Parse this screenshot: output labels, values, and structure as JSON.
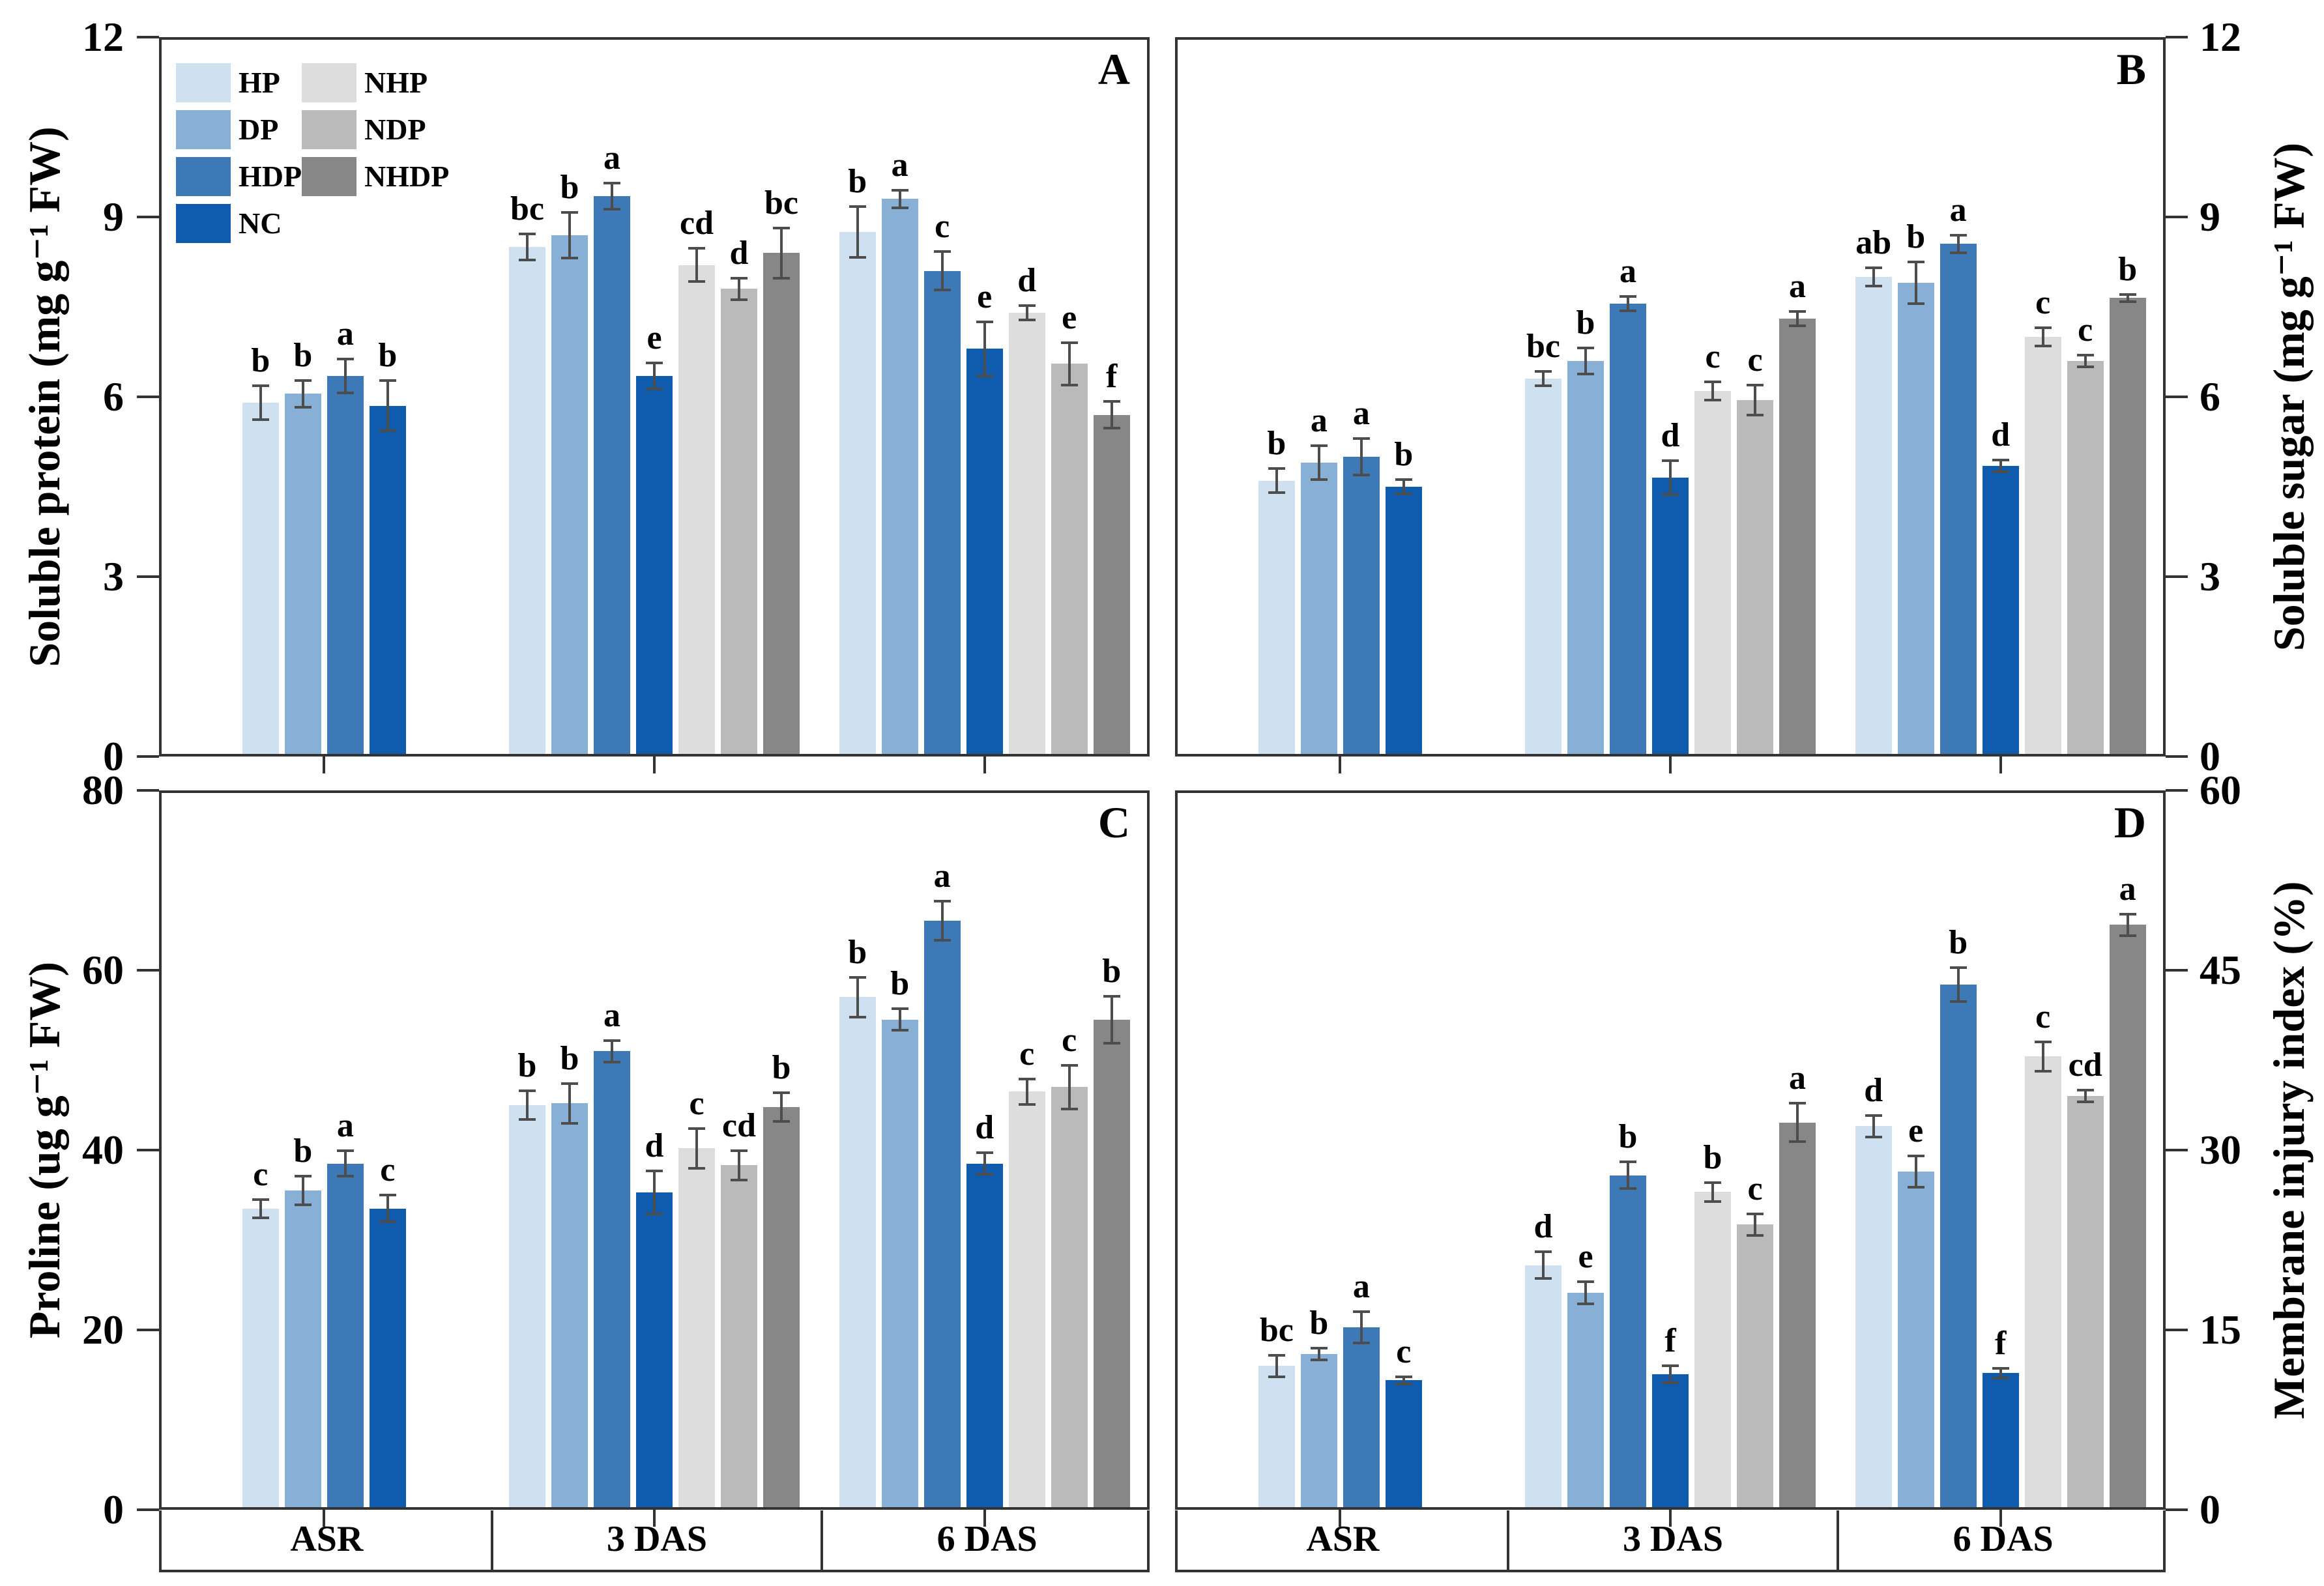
{
  "style": {
    "axis_color": "#333333",
    "error_bar_color": "#4d4d4d",
    "background": "#ffffff",
    "text_color": "#000000"
  },
  "legend": {
    "items": [
      {
        "label": "HP",
        "color": "#cfe0f1"
      },
      {
        "label": "DP",
        "color": "#88b0d7"
      },
      {
        "label": "HDP",
        "color": "#3d79b6"
      },
      {
        "label": "NC",
        "color": "#0f5bad"
      },
      {
        "label": "NHP",
        "color": "#dddddd"
      },
      {
        "label": "NDP",
        "color": "#bababa"
      },
      {
        "label": "NHDP",
        "color": "#878787"
      }
    ]
  },
  "chart_data": [
    {
      "type": "bar",
      "panel_label": "A",
      "ylabel": "Soluble protein (mg g⁻¹ FW)",
      "axis_side": "left",
      "ylim": [
        0,
        12
      ],
      "yticks": [
        0,
        3,
        6,
        9,
        12
      ],
      "categories": [
        "ASR",
        "3 DAS",
        "6 DAS"
      ],
      "grid": false,
      "groups": [
        {
          "category": "ASR",
          "bars": [
            {
              "treatment": "HP",
              "value": 5.9,
              "error": 0.28,
              "letter": "b"
            },
            {
              "treatment": "DP",
              "value": 6.05,
              "error": 0.22,
              "letter": "b"
            },
            {
              "treatment": "HDP",
              "value": 6.35,
              "error": 0.28,
              "letter": "a"
            },
            {
              "treatment": "NC",
              "value": 5.85,
              "error": 0.42,
              "letter": "b"
            }
          ]
        },
        {
          "category": "3 DAS",
          "bars": [
            {
              "treatment": "HP",
              "value": 8.5,
              "error": 0.22,
              "letter": "bc"
            },
            {
              "treatment": "DP",
              "value": 8.7,
              "error": 0.38,
              "letter": "b"
            },
            {
              "treatment": "HDP",
              "value": 9.35,
              "error": 0.22,
              "letter": "a"
            },
            {
              "treatment": "NC",
              "value": 6.35,
              "error": 0.22,
              "letter": "e"
            },
            {
              "treatment": "NHP",
              "value": 8.2,
              "error": 0.28,
              "letter": "cd"
            },
            {
              "treatment": "NDP",
              "value": 7.8,
              "error": 0.18,
              "letter": "d"
            },
            {
              "treatment": "NHDP",
              "value": 8.4,
              "error": 0.42,
              "letter": "bc"
            }
          ]
        },
        {
          "category": "6 DAS",
          "bars": [
            {
              "treatment": "HP",
              "value": 8.75,
              "error": 0.42,
              "letter": "b"
            },
            {
              "treatment": "DP",
              "value": 9.3,
              "error": 0.15,
              "letter": "a"
            },
            {
              "treatment": "HDP",
              "value": 8.1,
              "error": 0.32,
              "letter": "c"
            },
            {
              "treatment": "NC",
              "value": 6.8,
              "error": 0.45,
              "letter": "e"
            },
            {
              "treatment": "NHP",
              "value": 7.4,
              "error": 0.12,
              "letter": "d"
            },
            {
              "treatment": "NDP",
              "value": 6.55,
              "error": 0.35,
              "letter": "e"
            },
            {
              "treatment": "NHDP",
              "value": 5.7,
              "error": 0.22,
              "letter": "f"
            }
          ]
        }
      ]
    },
    {
      "type": "bar",
      "panel_label": "B",
      "ylabel": "Soluble sugar (mg g⁻¹ FW)",
      "axis_side": "right",
      "ylim": [
        0,
        12
      ],
      "yticks": [
        0,
        3,
        6,
        9,
        12
      ],
      "categories": [
        "ASR",
        "3 DAS",
        "6 DAS"
      ],
      "grid": false,
      "groups": [
        {
          "category": "ASR",
          "bars": [
            {
              "treatment": "HP",
              "value": 4.6,
              "error": 0.2,
              "letter": "b"
            },
            {
              "treatment": "DP",
              "value": 4.9,
              "error": 0.28,
              "letter": "a"
            },
            {
              "treatment": "HDP",
              "value": 5.0,
              "error": 0.3,
              "letter": "a"
            },
            {
              "treatment": "NC",
              "value": 4.5,
              "error": 0.12,
              "letter": "b"
            }
          ]
        },
        {
          "category": "3 DAS",
          "bars": [
            {
              "treatment": "HP",
              "value": 6.3,
              "error": 0.12,
              "letter": "bc"
            },
            {
              "treatment": "DP",
              "value": 6.6,
              "error": 0.22,
              "letter": "b"
            },
            {
              "treatment": "HDP",
              "value": 7.55,
              "error": 0.12,
              "letter": "a"
            },
            {
              "treatment": "NC",
              "value": 4.65,
              "error": 0.28,
              "letter": "d"
            },
            {
              "treatment": "NHP",
              "value": 6.1,
              "error": 0.15,
              "letter": "c"
            },
            {
              "treatment": "NDP",
              "value": 5.95,
              "error": 0.25,
              "letter": "c"
            },
            {
              "treatment": "NHDP",
              "value": 7.3,
              "error": 0.12,
              "letter": "a"
            }
          ]
        },
        {
          "category": "6 DAS",
          "bars": [
            {
              "treatment": "HP",
              "value": 8.0,
              "error": 0.15,
              "letter": "ab"
            },
            {
              "treatment": "DP",
              "value": 7.9,
              "error": 0.35,
              "letter": "b"
            },
            {
              "treatment": "HDP",
              "value": 8.55,
              "error": 0.15,
              "letter": "a"
            },
            {
              "treatment": "NC",
              "value": 4.85,
              "error": 0.1,
              "letter": "d"
            },
            {
              "treatment": "NHP",
              "value": 7.0,
              "error": 0.15,
              "letter": "c"
            },
            {
              "treatment": "NDP",
              "value": 6.6,
              "error": 0.1,
              "letter": "c"
            },
            {
              "treatment": "NHDP",
              "value": 7.65,
              "error": 0.06,
              "letter": "b"
            }
          ]
        }
      ]
    },
    {
      "type": "bar",
      "panel_label": "C",
      "ylabel": "Proline (ug g⁻¹ FW)",
      "axis_side": "left",
      "ylim": [
        0,
        80
      ],
      "yticks": [
        0,
        20,
        40,
        60,
        80
      ],
      "categories": [
        "ASR",
        "3 DAS",
        "6 DAS"
      ],
      "grid": false,
      "groups": [
        {
          "category": "ASR",
          "bars": [
            {
              "treatment": "HP",
              "value": 33.5,
              "error": 1.0,
              "letter": "c"
            },
            {
              "treatment": "DP",
              "value": 35.5,
              "error": 1.6,
              "letter": "b"
            },
            {
              "treatment": "HDP",
              "value": 38.5,
              "error": 1.4,
              "letter": "a"
            },
            {
              "treatment": "NC",
              "value": 33.5,
              "error": 1.5,
              "letter": "c"
            }
          ]
        },
        {
          "category": "3 DAS",
          "bars": [
            {
              "treatment": "HP",
              "value": 45.0,
              "error": 1.6,
              "letter": "b"
            },
            {
              "treatment": "DP",
              "value": 45.2,
              "error": 2.2,
              "letter": "b"
            },
            {
              "treatment": "HDP",
              "value": 51.0,
              "error": 1.2,
              "letter": "a"
            },
            {
              "treatment": "NC",
              "value": 35.3,
              "error": 2.4,
              "letter": "d"
            },
            {
              "treatment": "NHP",
              "value": 40.2,
              "error": 2.2,
              "letter": "c"
            },
            {
              "treatment": "NDP",
              "value": 38.3,
              "error": 1.6,
              "letter": "cd"
            },
            {
              "treatment": "NHDP",
              "value": 44.8,
              "error": 1.6,
              "letter": "b"
            }
          ]
        },
        {
          "category": "6 DAS",
          "bars": [
            {
              "treatment": "HP",
              "value": 57.0,
              "error": 2.2,
              "letter": "b"
            },
            {
              "treatment": "DP",
              "value": 54.5,
              "error": 1.2,
              "letter": "b"
            },
            {
              "treatment": "HDP",
              "value": 65.5,
              "error": 2.2,
              "letter": "a"
            },
            {
              "treatment": "NC",
              "value": 38.5,
              "error": 1.2,
              "letter": "d"
            },
            {
              "treatment": "NHP",
              "value": 46.5,
              "error": 1.4,
              "letter": "c"
            },
            {
              "treatment": "NDP",
              "value": 47.0,
              "error": 2.4,
              "letter": "c"
            },
            {
              "treatment": "NHDP",
              "value": 54.5,
              "error": 2.6,
              "letter": "b"
            }
          ]
        }
      ]
    },
    {
      "type": "bar",
      "panel_label": "D",
      "ylabel": "Membrane injury index (%)",
      "axis_side": "right",
      "ylim": [
        0,
        60
      ],
      "yticks": [
        0,
        15,
        30,
        45,
        60
      ],
      "categories": [
        "ASR",
        "3 DAS",
        "6 DAS"
      ],
      "grid": false,
      "groups": [
        {
          "category": "ASR",
          "bars": [
            {
              "treatment": "HP",
              "value": 12.0,
              "error": 0.9,
              "letter": "bc"
            },
            {
              "treatment": "DP",
              "value": 13.0,
              "error": 0.5,
              "letter": "b"
            },
            {
              "treatment": "HDP",
              "value": 15.2,
              "error": 1.3,
              "letter": "a"
            },
            {
              "treatment": "NC",
              "value": 10.8,
              "error": 0.3,
              "letter": "c"
            }
          ]
        },
        {
          "category": "3 DAS",
          "bars": [
            {
              "treatment": "HP",
              "value": 20.4,
              "error": 1.1,
              "letter": "d"
            },
            {
              "treatment": "DP",
              "value": 18.1,
              "error": 0.9,
              "letter": "e"
            },
            {
              "treatment": "HDP",
              "value": 27.9,
              "error": 1.1,
              "letter": "b"
            },
            {
              "treatment": "NC",
              "value": 11.3,
              "error": 0.7,
              "letter": "f"
            },
            {
              "treatment": "NHP",
              "value": 26.5,
              "error": 0.8,
              "letter": "b"
            },
            {
              "treatment": "NDP",
              "value": 23.8,
              "error": 0.9,
              "letter": "c"
            },
            {
              "treatment": "NHDP",
              "value": 32.3,
              "error": 1.6,
              "letter": "a"
            }
          ]
        },
        {
          "category": "6 DAS",
          "bars": [
            {
              "treatment": "HP",
              "value": 32.0,
              "error": 0.9,
              "letter": "d"
            },
            {
              "treatment": "DP",
              "value": 28.2,
              "error": 1.3,
              "letter": "e"
            },
            {
              "treatment": "HDP",
              "value": 43.8,
              "error": 1.4,
              "letter": "b"
            },
            {
              "treatment": "NC",
              "value": 11.4,
              "error": 0.4,
              "letter": "f"
            },
            {
              "treatment": "NHP",
              "value": 37.8,
              "error": 1.2,
              "letter": "c"
            },
            {
              "treatment": "NDP",
              "value": 34.5,
              "error": 0.5,
              "letter": "cd"
            },
            {
              "treatment": "NHDP",
              "value": 48.8,
              "error": 0.9,
              "letter": "a"
            }
          ]
        }
      ]
    }
  ]
}
